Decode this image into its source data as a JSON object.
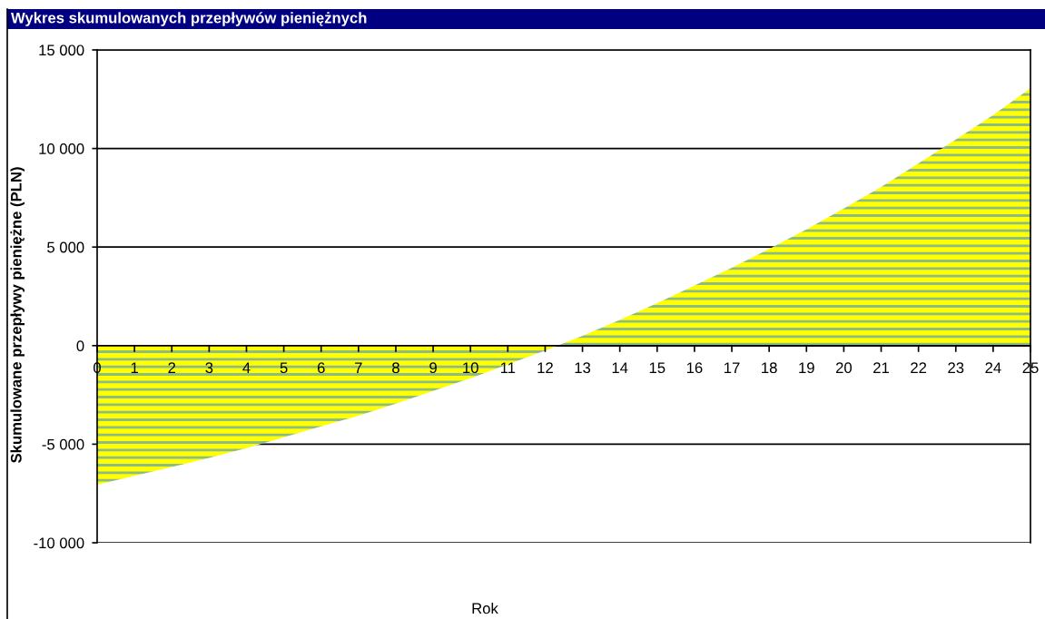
{
  "chart_data": {
    "type": "area",
    "title": "Wykres skumulowanych przepływów pieniężnych",
    "xlabel": "Rok",
    "ylabel": "Skumulowane przepływy pieniężne (PLN)",
    "x": [
      0,
      1,
      2,
      3,
      4,
      5,
      6,
      7,
      8,
      9,
      10,
      11,
      12,
      13,
      14,
      15,
      16,
      17,
      18,
      19,
      20,
      21,
      22,
      23,
      24,
      25
    ],
    "series": [
      {
        "color": "#ffff00",
        "values": [
          -7050,
          -6600,
          -6150,
          -5700,
          -5200,
          -4650,
          -4100,
          -3550,
          -2950,
          -2300,
          -1650,
          -950,
          -250,
          500,
          1300,
          2150,
          3050,
          3950,
          4900,
          5900,
          6950,
          8050,
          9250,
          10450,
          11700,
          13050
        ]
      }
    ],
    "xlim": [
      0,
      25
    ],
    "xticks": [
      0,
      1,
      2,
      3,
      4,
      5,
      6,
      7,
      8,
      9,
      10,
      11,
      12,
      13,
      14,
      15,
      16,
      17,
      18,
      19,
      20,
      21,
      22,
      23,
      24,
      25
    ],
    "ylim": [
      -10000,
      15000
    ],
    "yticks": [
      {
        "value": -10000,
        "label": "-10 000"
      },
      {
        "value": -5000,
        "label": "-5 000"
      },
      0,
      {
        "value": 5000,
        "label": "5 000"
      },
      {
        "value": 10000,
        "label": "10 000"
      },
      {
        "value": 15000,
        "label": "15 000"
      }
    ],
    "grid": "y"
  }
}
